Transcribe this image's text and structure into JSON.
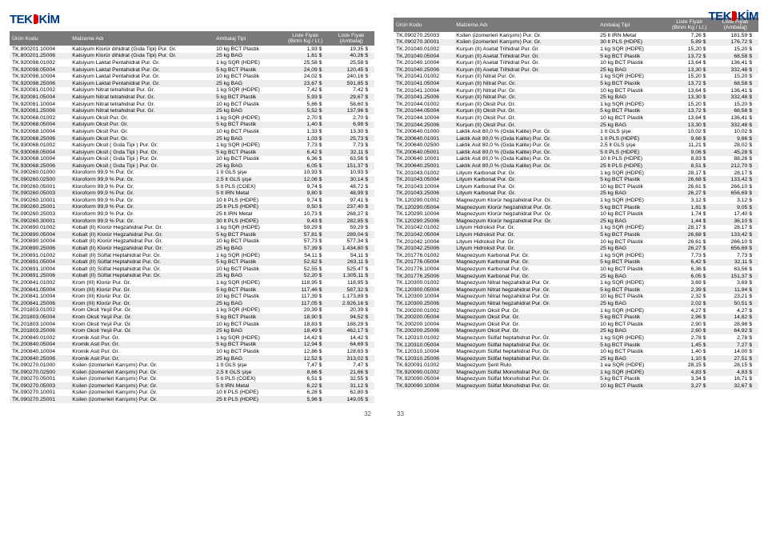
{
  "brand": "TEKKİM",
  "headers": {
    "code": "Ürün Kodu",
    "name": "Malzeme Adı",
    "pack": "Ambalaj Tipi",
    "price1": "Liste Fiyatı",
    "price1_sub": "(Birim Kg / Lt.)",
    "price2": "Liste Fiyatı",
    "price2_sub": "(Ambalaj)"
  },
  "pagenum_left": "32",
  "pagenum_right": "33",
  "left_rows": [
    [
      "TK.800201.10004",
      "Kalsiyum Klorür dihidrat (Gıda Tipi)  Pur. Gr.",
      "10 kg BCT Plastik",
      "1,93 $",
      "19,35 $"
    ],
    [
      "TK.800201.25006",
      "Kalsiyum Klorür dihidrat (Gıda Tipi)  Pur. Gr.",
      "25 kg BAG",
      "1,61 $",
      "40,26 $"
    ],
    [
      "TK.920098.01002",
      "Kalsiyum Laktat Pentahidrat  Pur. Gr.",
      "1 kg SQR (HDPE)",
      "25,58 $",
      "25,58 $"
    ],
    [
      "TK.920098.05004",
      "Kalsiyum Laktat Pentahidrat  Pur. Gr.",
      "5 kg BCT Plastik",
      "24,09 $",
      "120,45 $"
    ],
    [
      "TK.920098.10004",
      "Kalsiyum Laktat Pentahidrat  Pur. Gr.",
      "10 kg BCT Plastik",
      "24,02 $",
      "240,16 $"
    ],
    [
      "TK.920098.25006",
      "Kalsiyum Laktat Pentahidrat  Pur. Gr.",
      "25 kg BAG",
      "23,67 $",
      "591,85 $"
    ],
    [
      "TK.920081.01002",
      "Kalsiyum Nitrat tetrahidrat  Pur. Gr.",
      "1 kg SQR (HDPE)",
      "7,42 $",
      "7,42 $"
    ],
    [
      "TK.920081.05004",
      "Kalsiyum Nitrat tetrahidrat  Pur. Gr.",
      "5 kg BCT Plastik",
      "5,93 $",
      "29,67 $"
    ],
    [
      "TK.920081.10004",
      "Kalsiyum Nitrat tetrahidrat  Pur. Gr.",
      "10 kg BCT Plastik",
      "5,86 $",
      "58,60 $"
    ],
    [
      "TK.920081.25006",
      "Kalsiyum Nitrat tetrahidrat  Pur. Gr.",
      "25 kg BAG",
      "5,52 $",
      "137,96 $"
    ],
    [
      "TK.920068.01002",
      "Kalsiyum Oksit  Pur. Gr.",
      "1 kg SQR (HDPE)",
      "2,70 $",
      "2,70 $"
    ],
    [
      "TK.920068.05004",
      "Kalsiyum Oksit  Pur. Gr.",
      "5 kg BCT Plastik",
      "1,40 $",
      "6,98 $"
    ],
    [
      "TK.920068.10004",
      "Kalsiyum Oksit  Pur. Gr.",
      "10 kg BCT Plastik",
      "1,33 $",
      "13,30 $"
    ],
    [
      "TK.920068.25006",
      "Kalsiyum Oksit  Pur. Gr.",
      "25 kg BAG",
      "1,03 $",
      "25,73 $"
    ],
    [
      "TK.930068.01002",
      "Kalsiyum Oksit ( Gıda Tipi )  Pur. Gr.",
      "1 kg SQR (HDPE)",
      "7,73 $",
      "7,73 $"
    ],
    [
      "TK.930068.05004",
      "Kalsiyum Oksit ( Gıda Tipi )  Pur. Gr.",
      "5 kg BCT Plastik",
      "6,42 $",
      "32,11 $"
    ],
    [
      "TK.930068.10004",
      "Kalsiyum Oksit ( Gıda Tipi )  Pur. Gr.",
      "10 kg BCT Plastik",
      "6,36 $",
      "63,56 $"
    ],
    [
      "TK.930068.25006",
      "Kalsiyum Oksit ( Gıda Tipi )  Pur. Gr.",
      "25 kg BAG",
      "6,05 $",
      "151,37 $"
    ],
    [
      "TK.090260.01000",
      "Kloroform 99,9 %  Pur. Gr.",
      "1 lt GLS şişe",
      "10,93 $",
      "10,93 $"
    ],
    [
      "TK.090260.02500",
      "Kloroform 99,9 %  Pur. Gr.",
      "2,5 lt GLS şişe",
      "12,06 $",
      "30,14 $"
    ],
    [
      "TK.090260.05001",
      "Kloroform 99,9 %  Pur. Gr.",
      "5 lt PLS (COEX)",
      "9,74 $",
      "48,72 $"
    ],
    [
      "TK.090260.05003",
      "Kloroform 99,9 %  Pur. Gr.",
      "5 lt IRN Metal",
      "9,80 $",
      "48,99 $"
    ],
    [
      "TK.090260.10001",
      "Kloroform 99,9 %  Pur. Gr.",
      "10 lt PLS (HDPE)",
      "9,74 $",
      "97,41 $"
    ],
    [
      "TK.090260.25001",
      "Kloroform 99,9 %  Pur. Gr.",
      "25 lt PLS (HDPE)",
      "9,50 $",
      "237,40 $"
    ],
    [
      "TK.090260.25003",
      "Kloroform 99,9 %  Pur. Gr.",
      "25 lt IRN Metal",
      "10,73 $",
      "268,27 $"
    ],
    [
      "TK.090260.30001",
      "Kloroform 99,9 %  Pur. Gr.",
      "30 lt PLS (HDPE)",
      "9,43 $",
      "282,85 $"
    ],
    [
      "TK.200890.01002",
      "Kobalt (II) Klorür Hegzahidrat  Pur. Gr.",
      "1 kg SQR (HDPE)",
      "59,29 $",
      "59,29 $"
    ],
    [
      "TK.200890.05004",
      "Kobalt (II) Klorür Hegzahidrat  Pur. Gr.",
      "5 kg BCT Plastik",
      "57,81 $",
      "289,04 $"
    ],
    [
      "TK.200890.10004",
      "Kobalt (II) Klorür Hegzahidrat  Pur. Gr.",
      "10 kg BCT Plastik",
      "57,73 $",
      "577,34 $"
    ],
    [
      "TK.200890.25006",
      "Kobalt (II) Klorür Hegzahidrat  Pur. Gr.",
      "25 kg BAG",
      "57,39 $",
      "1.434,80 $"
    ],
    [
      "TK.200891.01002",
      "Kobalt (II) Sülfat Heptahidrat  Pur. Gr.",
      "1 kg SQR (HDPE)",
      "54,11 $",
      "54,11 $"
    ],
    [
      "TK.200891.05004",
      "Kobalt (II) Sülfat Heptahidrat  Pur. Gr.",
      "5 kg BCT Plastik",
      "52,62 $",
      "263,11 $"
    ],
    [
      "TK.200891.10004",
      "Kobalt (II) Sülfat Heptahidrat  Pur. Gr.",
      "10 kg BCT Plastik",
      "52,55 $",
      "525,47 $"
    ],
    [
      "TK.200891.25006",
      "Kobalt (II) Sülfat Heptahidrat  Pur. Gr.",
      "25 kg BAG",
      "52,20 $",
      "1.305,11 $"
    ],
    [
      "TK.200841.01002",
      "Krom (III) Klorür  Pur. Gr.",
      "1 kg SQR (HDPE)",
      "118,95 $",
      "118,95 $"
    ],
    [
      "TK.200841.05004",
      "Krom (III) Klorür  Pur. Gr.",
      "5 kg BCT Plastik",
      "117,46 $",
      "587,32 $"
    ],
    [
      "TK.200841.10004",
      "Krom (III) Klorür  Pur. Gr.",
      "10 kg BCT Plastik",
      "117,39 $",
      "1.173,89 $"
    ],
    [
      "TK.200841.25006",
      "Krom (III) Klorür  Pur. Gr.",
      "25 kg BAG",
      "117,05 $",
      "2.926,16 $"
    ],
    [
      "TK.201803.01002",
      "Krom Oksit Yeşil  Pur. Gr.",
      "1 kg SQR (HDPE)",
      "20,39 $",
      "20,39 $"
    ],
    [
      "TK.201803.05004",
      "Krom Oksit Yeşil  Pur. Gr.",
      "5 kg BCT Plastik",
      "18,90 $",
      "94,52 $"
    ],
    [
      "TK.201803.10004",
      "Krom Oksit Yeşil  Pur. Gr.",
      "10 kg BCT Plastik",
      "18,83 $",
      "188,29 $"
    ],
    [
      "TK.201803.25006",
      "Krom Oksit Yeşil  Pur. Gr.",
      "25 kg BAG",
      "18,49 $",
      "462,17 $"
    ],
    [
      "TK.200840.01002",
      "Kromik Asit  Pur. Gr.",
      "1 kg SQR (HDPE)",
      "14,42 $",
      "14,42 $"
    ],
    [
      "TK.200840.05004",
      "Kromik Asit  Pur. Gr.",
      "5 kg BCT Plastik",
      "12,94 $",
      "64,69 $"
    ],
    [
      "TK.200840.10004",
      "Kromik Asit  Pur. Gr.",
      "10 kg BCT Plastik",
      "12,86 $",
      "128,63 $"
    ],
    [
      "TK.200840.25006",
      "Kromik Asit  Pur. Gr.",
      "25 kg BAG",
      "12,52 $",
      "313,02 $"
    ],
    [
      "TK.090270.01000",
      "Ksilen (izomerleri Karışımı)  Pur. Gr.",
      "1 lt GLS şişe",
      "7,47 $",
      "7,47 $"
    ],
    [
      "TK.090270.02500",
      "Ksilen (izomerleri Karışımı)  Pur. Gr.",
      "2,5 lt GLS şişe",
      "8,66 $",
      "21,66 $"
    ],
    [
      "TK.090270.05001",
      "Ksilen (izomerleri Karışımı)  Pur. Gr.",
      "5 lt PLS (COEX)",
      "6,51 $",
      "32,55 $"
    ],
    [
      "TK.090270.05003",
      "Ksilen (izomerleri Karışımı)  Pur. Gr.",
      "5 lt IRN Metal",
      "6,22 $",
      "31,12 $"
    ],
    [
      "TK.090270.10001",
      "Ksilen (izomerleri Karışımı)  Pur. Gr.",
      "10 lt PLS (HDPE)",
      "6,28 $",
      "62,80 $"
    ],
    [
      "TK.090270.25001",
      "Ksilen (izomerleri Karışımı)  Pur. Gr.",
      "25 lt PLS (HDPE)",
      "5,96 $",
      "149,05 $"
    ]
  ],
  "right_rows": [
    [
      "TK.090270.25003",
      "Ksilen (izomerleri Karışımı)  Pur. Gr.",
      "25 lt IRN Metal",
      "7,26 $",
      "181,59 $"
    ],
    [
      "TK.090270.30001",
      "Ksilen (izomerleri Karışımı)  Pur. Gr.",
      "30 lt PLS (HDPE)",
      "5,89 $",
      "176,72 $"
    ],
    [
      "TK.201040.01002",
      "Kurşun (II) Asetat Trihidrat  Pur. Gr.",
      "1 kg SQR (HDPE)",
      "15,20 $",
      "15,20 $"
    ],
    [
      "TK.201040.05004",
      "Kurşun (II) Asetat Trihidrat  Pur. Gr.",
      "5 kg BCT Plastik",
      "13,72 $",
      "68,58 $"
    ],
    [
      "TK.201040.10004",
      "Kurşun (II) Asetat Trihidrat  Pur. Gr.",
      "10 kg BCT Plastik",
      "13,64 $",
      "136,41 $"
    ],
    [
      "TK.201040.25006",
      "Kurşun (II) Asetat Trihidrat  Pur. Gr.",
      "25 kg BAG",
      "13,30 $",
      "332,48 $"
    ],
    [
      "TK.201041.01002",
      "Kurşun (II) Nitrat  Pur. Gr.",
      "1 kg SQR (HDPE)",
      "15,20 $",
      "15,20 $"
    ],
    [
      "TK.201041.05004",
      "Kurşun (II) Nitrat  Pur. Gr.",
      "5 kg BCT Plastik",
      "13,72 $",
      "68,58 $"
    ],
    [
      "TK.201041.10004",
      "Kurşun (II) Nitrat  Pur. Gr.",
      "10 kg BCT Plastik",
      "13,64 $",
      "136,41 $"
    ],
    [
      "TK.201041.25006",
      "Kurşun (II) Nitrat  Pur. Gr.",
      "25 kg BAG",
      "13,30 $",
      "332,48 $"
    ],
    [
      "TK.201044.01002",
      "Kurşun (II) Oksit  Pur. Gr.",
      "1 kg SQR (HDPE)",
      "15,20 $",
      "15,20 $"
    ],
    [
      "TK.201044.05004",
      "Kurşun (II) Oksit  Pur. Gr.",
      "5 kg BCT Plastik",
      "13,72 $",
      "68,58 $"
    ],
    [
      "TK.201044.10004",
      "Kurşun (II) Oksit  Pur. Gr.",
      "10 kg BCT Plastik",
      "13,64 $",
      "136,41 $"
    ],
    [
      "TK.201044.25006",
      "Kurşun (II) Oksit  Pur. Gr.",
      "25 kg BAG",
      "13,30 $",
      "332,48 $"
    ],
    [
      "TK.200640.01000",
      "Laktik Asit 80,0 % (Gıda Kalite)  Pur. Gr.",
      "1 lt GLS şişe",
      "10,02 $",
      "10,02 $"
    ],
    [
      "TK.200640.01001",
      "Laktik Asit 80,0 % (Gıda Kalite)  Pur. Gr.",
      "1 lt PLS (HDPE)",
      "9,66 $",
      "9,66 $"
    ],
    [
      "TK.200640.02500",
      "Laktik Asit 80,0 % (Gıda Kalite)  Pur. Gr.",
      "2,5 lt GLS şişe",
      "11,21 $",
      "28,02 $"
    ],
    [
      "TK.200640.05001",
      "Laktik Asit 80,0 % (Gıda Kalite)  Pur. Gr.",
      "5 lt PLS (HDPE)",
      "9,06 $",
      "45,28 $"
    ],
    [
      "TK.200640.10001",
      "Laktik Asit 80,0 % (Gıda Kalite)  Pur. Gr.",
      "10 lt PLS (HDPE)",
      "8,83 $",
      "88,26 $"
    ],
    [
      "TK.200640.25001",
      "Laktik Asit 80,0 % (Gıda Kalite)  Pur. Gr.",
      "25 lt PLS (HDPE)",
      "8,51 $",
      "212,70 $"
    ],
    [
      "TK.201043.01002",
      "Lityum Karbonat  Pur. Gr.",
      "1 kg SQR (HDPE)",
      "28,17 $",
      "28,17 $"
    ],
    [
      "TK.201043.05004",
      "Lityum Karbonat  Pur. Gr.",
      "5 kg BCT Plastik",
      "26,68 $",
      "133,42 $"
    ],
    [
      "TK.201043.10004",
      "Lityum Karbonat  Pur. Gr.",
      "10 kg BCT Plastik",
      "26,61 $",
      "266,10 $"
    ],
    [
      "TK.201043.25006",
      "Lityum Karbonat  Pur. Gr.",
      "25 kg BAG",
      "26,27 $",
      "656,69 $"
    ],
    [
      "TK.120290.01002",
      "Magnezyum Klorür hegzahidrat  Pur. Gr.",
      "1 kg SQR (HDPE)",
      "3,12 $",
      "3,12 $"
    ],
    [
      "TK.120290.05004",
      "Magnezyum Klorür hegzahidrat  Pur. Gr.",
      "5 kg BCT Plastik",
      "1,81 $",
      "9,05 $"
    ],
    [
      "TK.120290.10004",
      "Magnezyum Klorür hegzahidrat  Pur. Gr.",
      "10 kg BCT Plastik",
      "1,74 $",
      "17,40 $"
    ],
    [
      "TK.120290.25006",
      "Magnezyum Klorür hegzahidrat  Pur. Gr.",
      "25 kg BAG",
      "1,44 $",
      "36,10 $"
    ],
    [
      "TK.201042.01002",
      "Lityum Hidroksit  Pur. Gr.",
      "1 kg SQR (HDPE)",
      "28,17 $",
      "28,17 $"
    ],
    [
      "TK.201042.05004",
      "Lityum Hidroksit  Pur. Gr.",
      "5 kg BCT Plastik",
      "26,68 $",
      "133,42 $"
    ],
    [
      "TK.201042.10004",
      "Lityum Hidroksit  Pur. Gr.",
      "10 kg BCT Plastik",
      "26,61 $",
      "266,10 $"
    ],
    [
      "TK.201042.25006",
      "Lityum Hidroksit  Pur. Gr.",
      "25 kg BAG",
      "26,27 $",
      "656,69 $"
    ],
    [
      "TK.201776.01002",
      "Magnezyum Karbonat  Pur. Gr.",
      "1 kg SQR (HDPE)",
      "7,73 $",
      "7,73 $"
    ],
    [
      "TK.201776.05004",
      "Magnezyum Karbonat  Pur. Gr.",
      "5 kg BCT Plastik",
      "6,42 $",
      "32,11 $"
    ],
    [
      "TK.201776.10004",
      "Magnezyum Karbonat  Pur. Gr.",
      "10 kg BCT Plastik",
      "6,36 $",
      "63,56 $"
    ],
    [
      "TK.201776.25006",
      "Magnezyum Karbonat  Pur. Gr.",
      "25 kg BAG",
      "6,05 $",
      "151,37 $"
    ],
    [
      "TK.120300.01002",
      "Magnezyum Nitrat hegzahidrat  Pur. Gr.",
      "1 kg SQR (HDPE)",
      "3,69 $",
      "3,69 $"
    ],
    [
      "TK.120300.05004",
      "Magnezyum Nitrat hegzahidrat  Pur. Gr.",
      "5 kg BCT Plastik",
      "2,39 $",
      "11,94 $"
    ],
    [
      "TK.120300.10004",
      "Magnezyum Nitrat hegzahidrat  Pur. Gr.",
      "10 kg BCT Plastik",
      "2,32 $",
      "23,21 $"
    ],
    [
      "TK.120300.25006",
      "Magnezyum Nitrat hegzahidrat  Pur. Gr.",
      "25 kg BAG",
      "2,02 $",
      "50,51 $"
    ],
    [
      "TK.200200.01002",
      "Magnezyum Oksit  Pur. Gr.",
      "1 kg SQR (HDPE)",
      "4,27 $",
      "4,27 $"
    ],
    [
      "TK.200200.05004",
      "Magnezyum Oksit  Pur. Gr.",
      "5 kg BCT Plastik",
      "2,96 $",
      "14,82 $"
    ],
    [
      "TK.200200.10004",
      "Magnezyum Oksit  Pur. Gr.",
      "10 kg BCT Plastik",
      "2,90 $",
      "28,98 $"
    ],
    [
      "TK.200200.25006",
      "Magnezyum Oksit  Pur. Gr.",
      "25 kg BAG",
      "2,60 $",
      "64,92 $"
    ],
    [
      "TK.120310.01002",
      "Magnezyum Sülfat heptahidrat  Pur. Gr.",
      "1 kg SQR (HDPE)",
      "2,78 $",
      "2,78 $"
    ],
    [
      "TK.120310.05004",
      "Magnezyum Sülfat heptahidrat  Pur. Gr.",
      "5 kg BCT Plastik",
      "1,45 $",
      "7,27 $"
    ],
    [
      "TK.120310.10004",
      "Magnezyum Sülfat heptahidrat  Pur. Gr.",
      "10 kg BCT Plastik",
      "1,40 $",
      "14,00 $"
    ],
    [
      "TK.120310.25006",
      "Magnezyum Sülfat heptahidrat  Pur. Gr.",
      "25 kg BAG",
      "1,10 $",
      "27,51 $"
    ],
    [
      "TK.920091.01002",
      "Magnezyum Şerit Rulo",
      "1 ea SQR (HDPE)",
      "28,15 $",
      "28,15 $"
    ],
    [
      "TK.920090.01002",
      "Magnezyum Sülfat Monohidrat  Pur. Gr.",
      "1 kg SQR (HDPE)",
      "4,83 $",
      "4,83 $"
    ],
    [
      "TK.920090.05004",
      "Magnezyum Sülfat Monohidrat  Pur. Gr.",
      "5 kg BCT Plastik",
      "3,34 $",
      "16,71 $"
    ],
    [
      "TK.920090.10004",
      "Magnezyum Sülfat Monohidrat  Pur. Gr.",
      "10 kg BCT Plastik",
      "3,27 $",
      "32,67 $"
    ]
  ]
}
